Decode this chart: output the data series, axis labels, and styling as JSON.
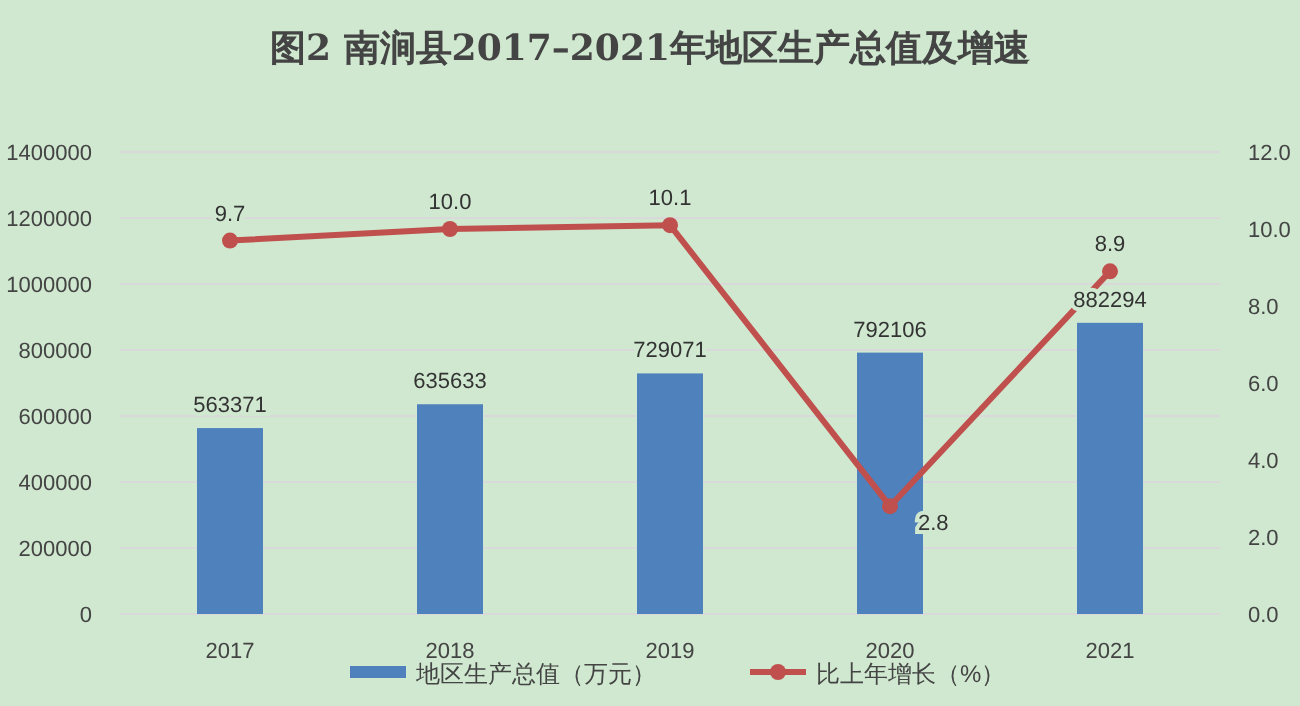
{
  "chart_data": {
    "type": "bar",
    "title": "图2  南涧县2017–2021年地区生产总值及增速",
    "categories": [
      "2017",
      "2018",
      "2019",
      "2020",
      "2021"
    ],
    "series": [
      {
        "name": "地区生产总值（万元）",
        "color": "#4f81bd",
        "values": [
          563371,
          635633,
          729071,
          792106,
          882294
        ]
      },
      {
        "name": "比上年增长（%）",
        "type": "line",
        "axis": "y2",
        "color": "#c0504d",
        "values": [
          9.7,
          10.0,
          10.1,
          2.8,
          8.9
        ],
        "value_labels": [
          "9.7",
          "10.0",
          "10.1",
          "2.8",
          "8.9"
        ]
      }
    ],
    "data_labels": true,
    "ylim": [
      0,
      1400000
    ],
    "yticks": [
      0,
      200000,
      400000,
      600000,
      800000,
      1000000,
      1200000,
      1400000
    ],
    "y2lim": [
      0,
      12
    ],
    "y2ticks": [
      {
        "value": 0,
        "label": "0.0"
      },
      {
        "value": 2,
        "label": "2.0"
      },
      {
        "value": 4,
        "label": "4.0"
      },
      {
        "value": 6,
        "label": "6.0"
      },
      {
        "value": 8,
        "label": "8.0"
      },
      {
        "value": 10,
        "label": "10.0"
      },
      {
        "value": 12,
        "label": "12.0"
      }
    ],
    "grid": "y",
    "legend": "bottom",
    "marker": "circle",
    "line_style": "solid"
  }
}
